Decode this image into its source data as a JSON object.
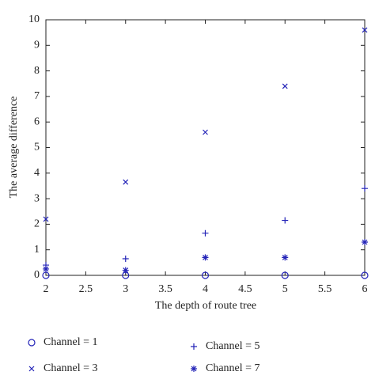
{
  "chart_data": {
    "type": "scatter",
    "xlabel": "The depth of route tree",
    "ylabel": "The average difference",
    "x": [
      2,
      3,
      4,
      5,
      6
    ],
    "xlim": [
      2,
      6
    ],
    "xticks": [
      2,
      2.5,
      3,
      3.5,
      4,
      4.5,
      5,
      5.5,
      6
    ],
    "ylim": [
      0,
      10
    ],
    "yticks": [
      0,
      1,
      2,
      3,
      4,
      5,
      6,
      7,
      8,
      9,
      10
    ],
    "grid": false,
    "series": [
      {
        "name": "Channel = 1",
        "color": "#2424b8",
        "marker": "o",
        "values": [
          0,
          0,
          0,
          0,
          0
        ]
      },
      {
        "name": "Channel = 3",
        "color": "#2424b8",
        "marker": "x",
        "values": [
          2.2,
          3.65,
          5.6,
          7.4,
          9.6
        ]
      },
      {
        "name": "Channel = 5",
        "color": "#2424b8",
        "marker": "+",
        "values": [
          0.4,
          0.65,
          1.65,
          2.15,
          3.4
        ]
      },
      {
        "name": "Channel = 7",
        "color": "#2424b8",
        "marker": "*",
        "values": [
          0.25,
          0.2,
          0.7,
          0.7,
          1.3
        ]
      }
    ]
  }
}
